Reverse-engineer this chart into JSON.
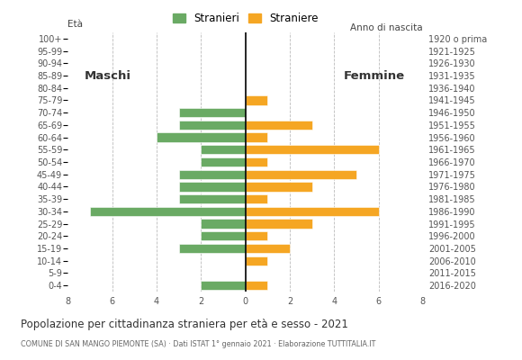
{
  "age_groups": [
    "0-4",
    "5-9",
    "10-14",
    "15-19",
    "20-24",
    "25-29",
    "30-34",
    "35-39",
    "40-44",
    "45-49",
    "50-54",
    "55-59",
    "60-64",
    "65-69",
    "70-74",
    "75-79",
    "80-84",
    "85-89",
    "90-94",
    "95-99",
    "100+"
  ],
  "birth_years": [
    "2016-2020",
    "2011-2015",
    "2006-2010",
    "2001-2005",
    "1996-2000",
    "1991-1995",
    "1986-1990",
    "1981-1985",
    "1976-1980",
    "1971-1975",
    "1966-1970",
    "1961-1965",
    "1956-1960",
    "1951-1955",
    "1946-1950",
    "1941-1945",
    "1936-1940",
    "1931-1935",
    "1926-1930",
    "1921-1925",
    "1920 o prima"
  ],
  "males": [
    2,
    0,
    0,
    3,
    2,
    2,
    7,
    3,
    3,
    3,
    2,
    2,
    4,
    3,
    3,
    0,
    0,
    0,
    0,
    0,
    0
  ],
  "females": [
    1,
    0,
    1,
    2,
    1,
    3,
    6,
    1,
    3,
    5,
    1,
    6,
    1,
    3,
    0,
    1,
    0,
    0,
    0,
    0,
    0
  ],
  "male_color": "#6aaa64",
  "female_color": "#f5a623",
  "background_color": "#ffffff",
  "grid_color": "#bbbbbb",
  "title": "Popolazione per cittadinanza straniera per età e sesso - 2021",
  "subtitle": "COMUNE DI SAN MANGO PIEMONTE (SA) · Dati ISTAT 1° gennaio 2021 · Elaborazione TUTTITALIA.IT",
  "legend_male": "Stranieri",
  "legend_female": "Straniere",
  "label_eta": "Età",
  "label_anno": "Anno di nascita",
  "label_maschi": "Maschi",
  "label_femmine": "Femmine",
  "xlim": 8,
  "tick_fontsize": 7.0,
  "axis_label_fontsize": 7.5
}
